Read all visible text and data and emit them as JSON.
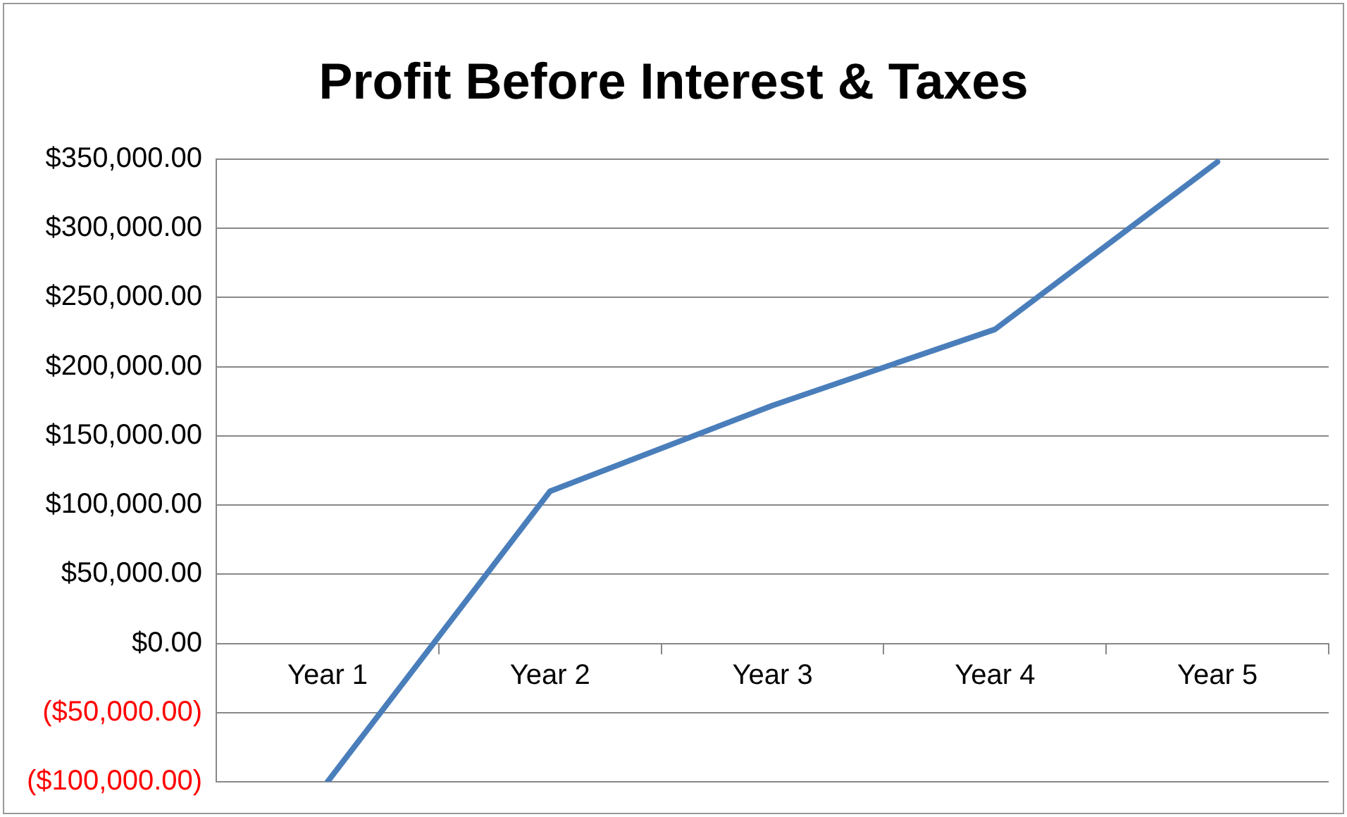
{
  "chart_data": {
    "type": "line",
    "title": "Profit Before Interest & Taxes",
    "categories": [
      "Year 1",
      "Year 2",
      "Year 3",
      "Year 4",
      "Year 5"
    ],
    "series": [
      {
        "color": "#4a7ebb",
        "values": [
          -100000,
          110000,
          172000,
          227000,
          348000
        ]
      }
    ],
    "ylim": [
      -100000,
      350000
    ],
    "yticks": [
      {
        "value": -100000,
        "label": "($100,000.00)"
      },
      {
        "value": -50000,
        "label": "($50,000.00)"
      },
      {
        "value": 0,
        "label": "$0.00"
      },
      {
        "value": 50000,
        "label": "$50,000.00"
      },
      {
        "value": 100000,
        "label": "$100,000.00"
      },
      {
        "value": 150000,
        "label": "$150,000.00"
      },
      {
        "value": 200000,
        "label": "$200,000.00"
      },
      {
        "value": 250000,
        "label": "$250,000.00"
      },
      {
        "value": 300000,
        "label": "$300,000.00"
      },
      {
        "value": 350000,
        "label": "$350,000.00"
      }
    ],
    "grid": "y",
    "legend": false,
    "marker": "none",
    "line_style": "solid"
  }
}
